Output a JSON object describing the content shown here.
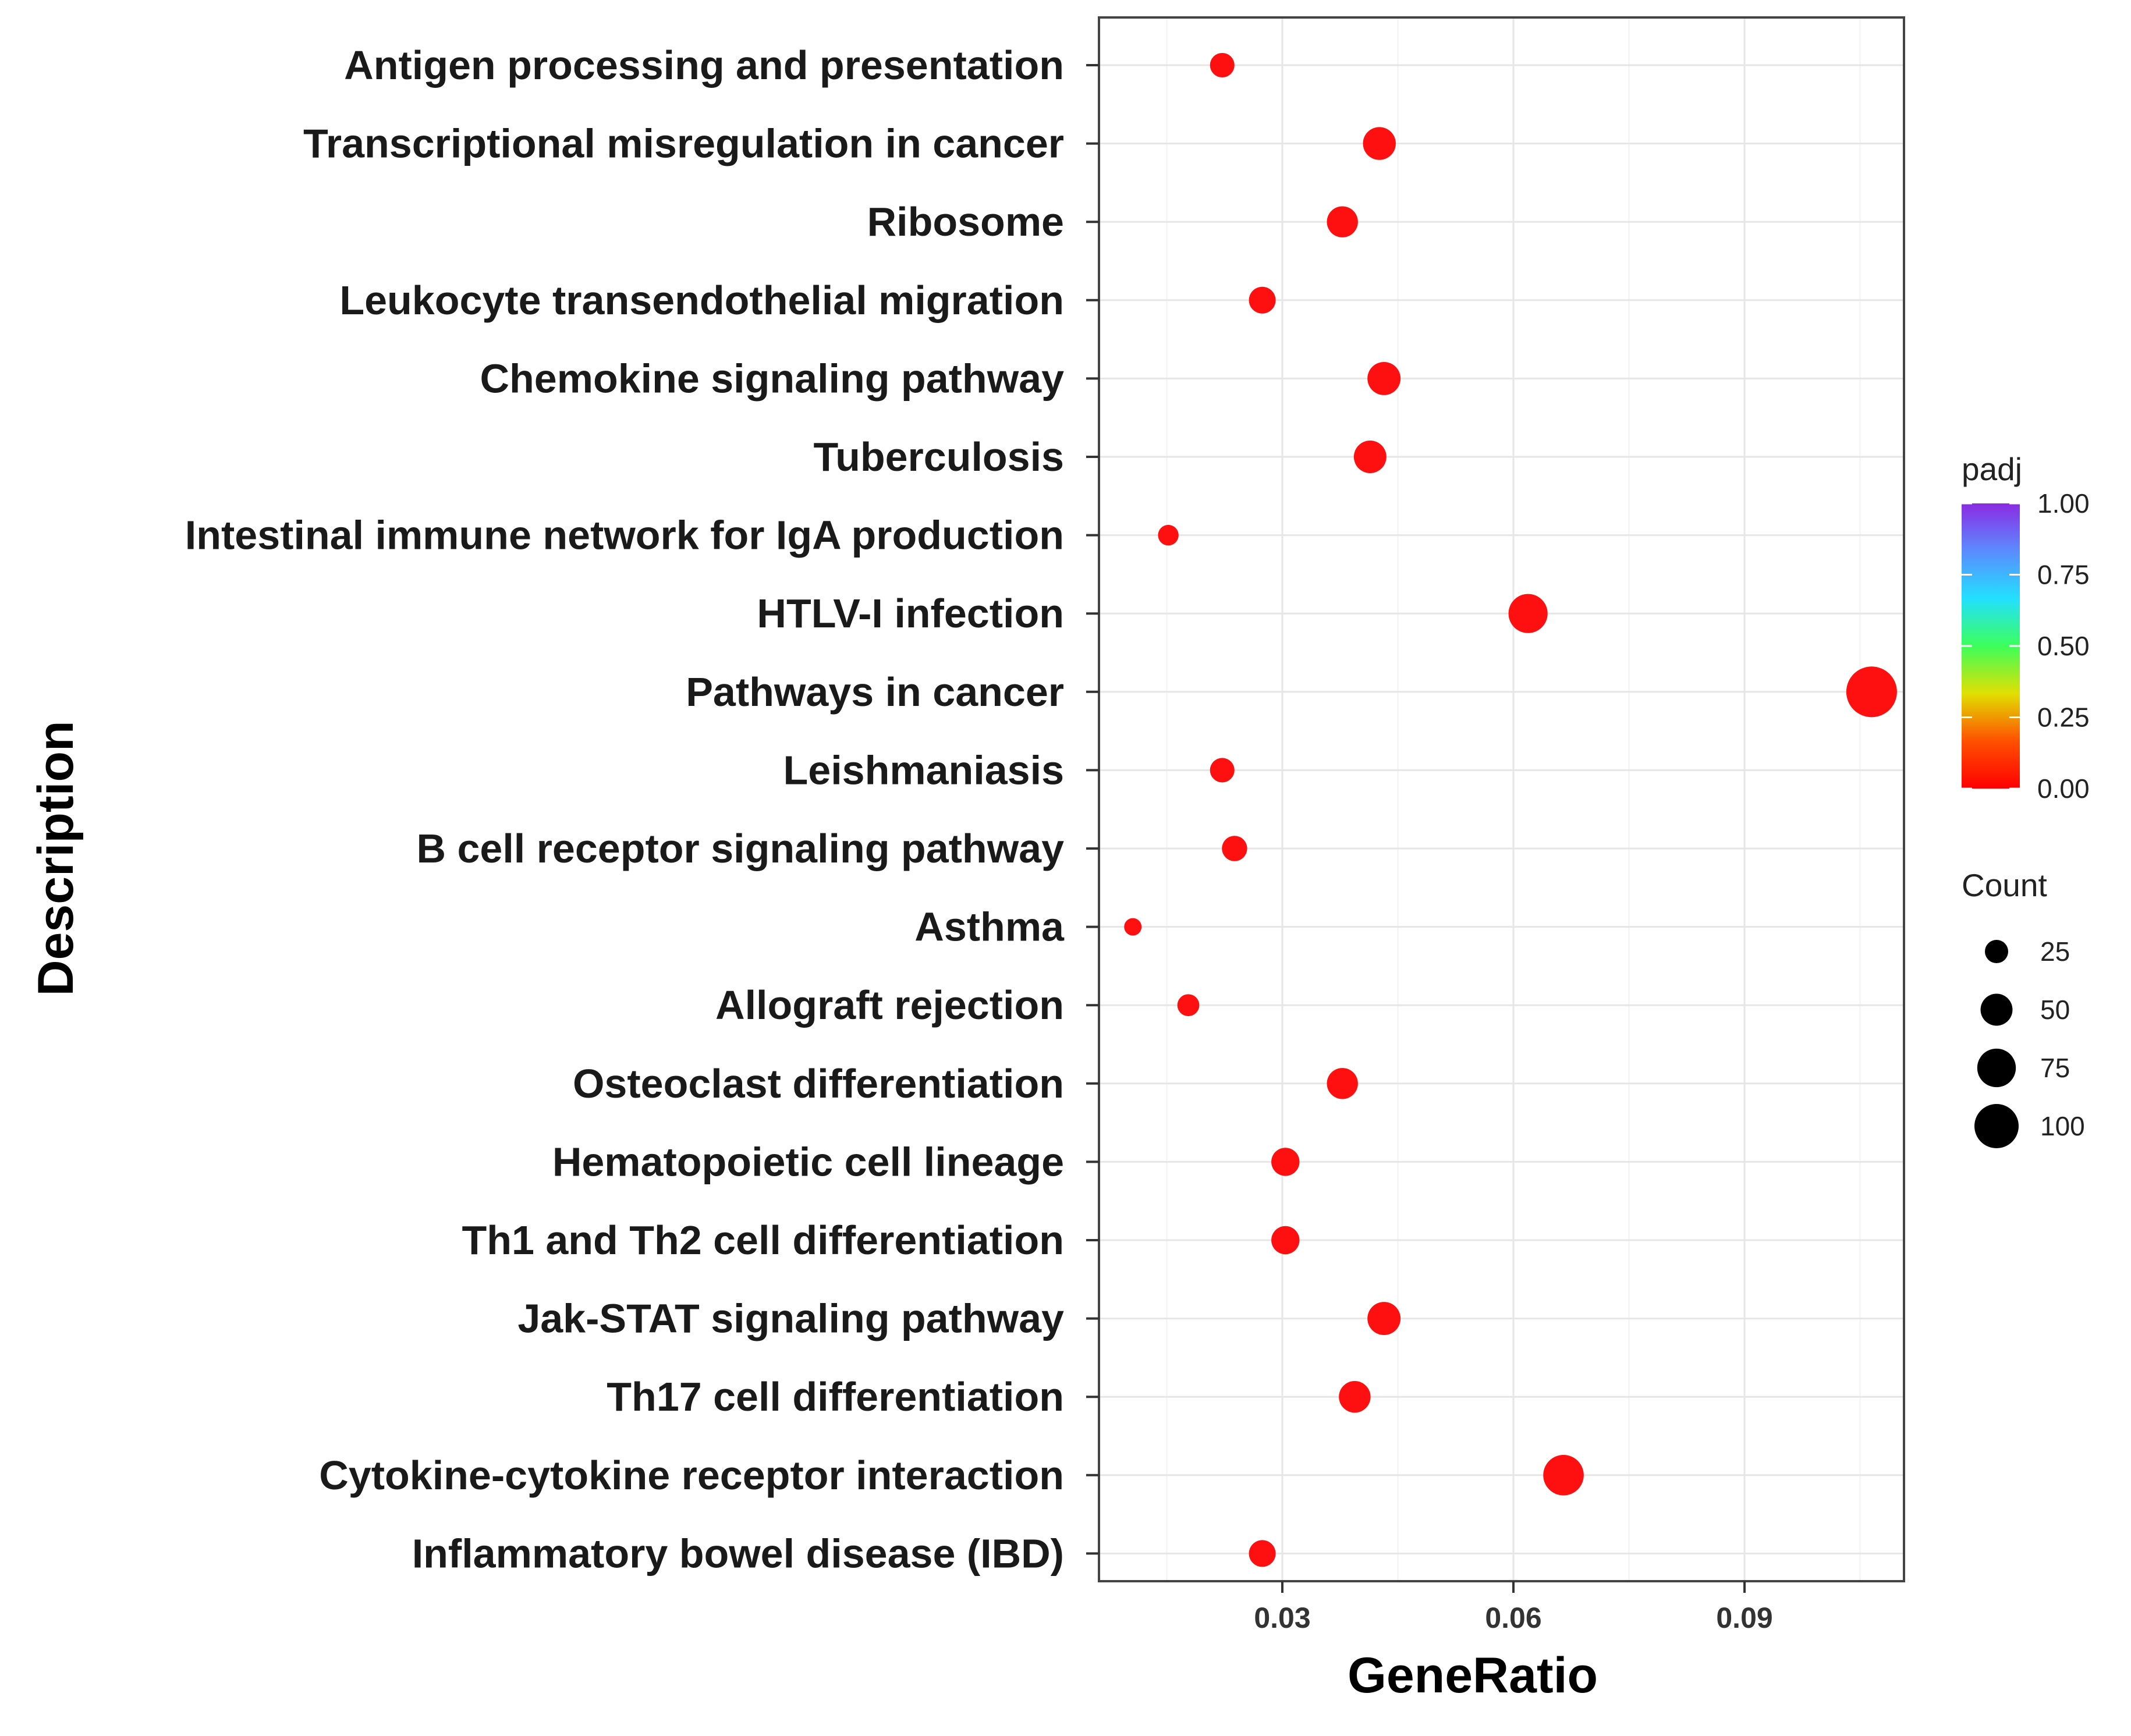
{
  "chart_data": {
    "type": "scatter",
    "title": "",
    "xlabel": "GeneRatio",
    "ylabel": "Description",
    "xlim": [
      0.0062,
      0.1107
    ],
    "xticks": [
      "0.03",
      "0.06",
      "0.09"
    ],
    "xtick_values": [
      0.03,
      0.06,
      0.09
    ],
    "grid": true,
    "categories": [
      "Antigen processing and presentation",
      "Transcriptional misregulation in cancer",
      "Ribosome",
      "Leukocyte transendothelial migration",
      "Chemokine signaling pathway",
      "Tuberculosis",
      "Intestinal immune network for IgA production",
      "HTLV-I infection",
      "Pathways in cancer",
      "Leishmaniasis",
      "B cell receptor signaling pathway",
      "Asthma",
      "Allograft rejection",
      "Osteoclast differentiation",
      "Hematopoietic cell lineage",
      "Th1 and Th2 cell differentiation",
      "Jak-STAT signaling pathway",
      "Th17 cell differentiation",
      "Cytokine-cytokine receptor interaction",
      "Inflammatory bowel disease (IBD)"
    ],
    "gene_ratio": [
      0.0222,
      0.0426,
      0.0378,
      0.0274,
      0.0432,
      0.0414,
      0.0152,
      0.0619,
      0.1065,
      0.0222,
      0.0238,
      0.0106,
      0.0178,
      0.0378,
      0.0304,
      0.0304,
      0.0432,
      0.0394,
      0.0665,
      0.0274
    ],
    "count": [
      28,
      53,
      47,
      34,
      54,
      52,
      19,
      77,
      133,
      28,
      30,
      13,
      22,
      47,
      38,
      38,
      54,
      49,
      83,
      34
    ],
    "padj": [
      0.0,
      0.0,
      0.0,
      0.0,
      0.0,
      0.0,
      0.0,
      0.0,
      0.0,
      0.0,
      0.0,
      0.0,
      0.0,
      0.0,
      0.0,
      0.0,
      0.0,
      0.0,
      0.0,
      0.0
    ],
    "point_color": "#ff1010",
    "legend": {
      "color": {
        "title": "padj",
        "ticks": [
          "1.00",
          "0.75",
          "0.50",
          "0.25",
          "0.00"
        ],
        "tick_values": [
          1.0,
          0.75,
          0.5,
          0.25,
          0.0
        ],
        "colors": [
          "#8a2be2",
          "#5a8cff",
          "#22e0ff",
          "#3cff5a",
          "#e0e000",
          "#ff5000",
          "#ff0000"
        ]
      },
      "size": {
        "title": "Count",
        "labels": [
          "25",
          "50",
          "75",
          "100"
        ],
        "values": [
          25,
          50,
          75,
          100
        ]
      },
      "position": "right"
    }
  }
}
